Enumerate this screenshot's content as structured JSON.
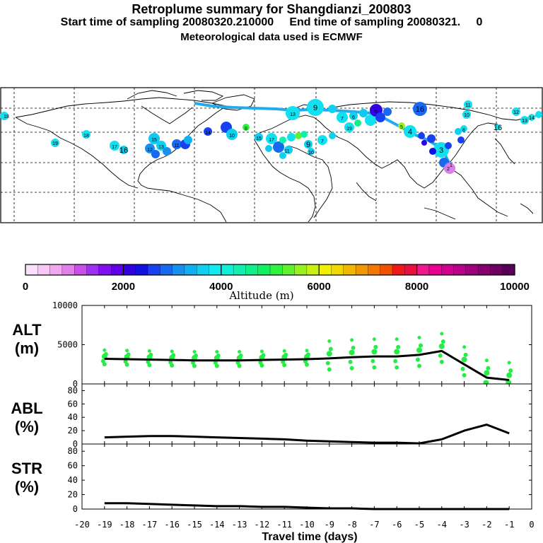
{
  "header": {
    "title": "Retroplume summary for Shangdianzi_200803",
    "sampling": "Start time of sampling 20080320.210000     End time of sampling 20080321.     0",
    "met": "Meteorological data used is ECMWF"
  },
  "colorbar": {
    "label": "Altitude (m)",
    "ticks": [
      "0",
      "2000",
      "4000",
      "6000",
      "8000",
      "10000"
    ],
    "colors": [
      "#fbe0fb",
      "#f7c8f7",
      "#efaaef",
      "#e080e8",
      "#c850e8",
      "#a030f0",
      "#8010f0",
      "#6000e8",
      "#3000e0",
      "#1010e0",
      "#1840f0",
      "#1868f0",
      "#1890f0",
      "#10b0f0",
      "#10d0f0",
      "#10eaf0",
      "#10f0d8",
      "#10f0b0",
      "#10f088",
      "#10f060",
      "#30f040",
      "#60f030",
      "#98f020",
      "#c8f010",
      "#f0f000",
      "#f0d800",
      "#f0b800",
      "#f09800",
      "#f07800",
      "#f05000",
      "#f01818",
      "#e81040",
      "#f01890",
      "#e80090",
      "#d00090",
      "#b80088",
      "#a00080",
      "#880070",
      "#700060",
      "#580058"
    ]
  },
  "map": {
    "labels": [
      "1",
      "2",
      "3",
      "4",
      "5",
      "6",
      "7",
      "8",
      "9",
      "10",
      "11",
      "12",
      "13",
      "14",
      "15",
      "16",
      "17",
      "18",
      "19"
    ]
  },
  "chart_data": [
    {
      "type": "line",
      "panel": "ALT",
      "ylabel_line1": "ALT",
      "ylabel_line2": "(m)",
      "ylim": [
        0,
        10000
      ],
      "yticks": [
        "0",
        "5000",
        "10000"
      ],
      "x": [
        -19,
        -18,
        -17,
        -16,
        -15,
        -14,
        -13,
        -12,
        -11,
        -10,
        -9,
        -8,
        -7,
        -6,
        -5,
        -4,
        -3,
        -2,
        -1
      ],
      "values": [
        3200,
        3150,
        3100,
        3050,
        3000,
        3000,
        3000,
        3050,
        3100,
        3150,
        3250,
        3400,
        3500,
        3500,
        3700,
        4200,
        2500,
        800,
        500
      ],
      "scatter_color": "#22ee44"
    },
    {
      "type": "line",
      "panel": "ABL",
      "ylabel_line1": "ABL",
      "ylabel_line2": "(%)",
      "ylim": [
        0,
        90
      ],
      "yticks": [
        "0",
        "20",
        "40",
        "60",
        "80"
      ],
      "x": [
        -19,
        -18,
        -17,
        -16,
        -15,
        -14,
        -13,
        -12,
        -11,
        -10,
        -9,
        -8,
        -7,
        -6,
        -5,
        -4,
        -3,
        -2,
        -1
      ],
      "values": [
        10,
        11,
        12,
        12,
        11,
        10,
        9,
        8,
        7,
        5,
        4,
        3,
        2,
        2,
        1,
        7,
        20,
        29,
        16
      ]
    },
    {
      "type": "line",
      "panel": "STR",
      "ylabel_line1": "STR",
      "ylabel_line2": "(%)",
      "ylim": [
        0,
        90
      ],
      "yticks": [
        "0",
        "20",
        "40",
        "60",
        "80"
      ],
      "x": [
        -19,
        -18,
        -17,
        -16,
        -15,
        -14,
        -13,
        -12,
        -11,
        -10,
        -9,
        -8,
        -7,
        -6,
        -5,
        -4,
        -3,
        -2,
        -1
      ],
      "values": [
        8,
        8,
        7,
        6,
        5,
        4,
        4,
        3,
        3,
        2,
        1,
        1,
        0,
        0,
        0,
        0,
        0,
        0,
        0
      ],
      "xlabel": "Travel time (days)",
      "xticks": [
        "-20",
        "-19",
        "-18",
        "-17",
        "-16",
        "-15",
        "-14",
        "-13",
        "-12",
        "-11",
        "-10",
        "-9",
        "-8",
        "-7",
        "-6",
        "-5",
        "-4",
        "-3",
        "-2",
        "-1",
        "0"
      ]
    }
  ]
}
